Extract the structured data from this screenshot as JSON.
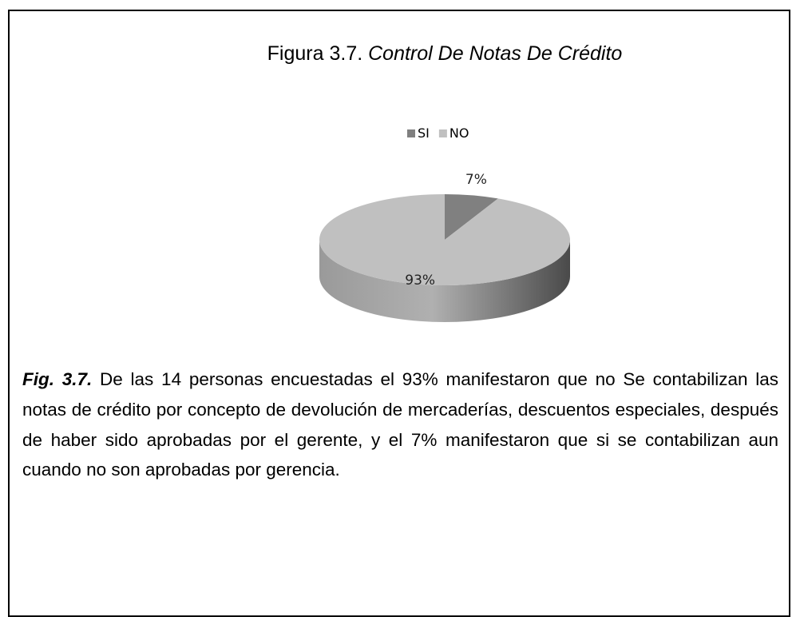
{
  "chart_data": {
    "type": "pie",
    "figure_label": "Figura 3.7.",
    "title": "Control De Notas De Crédito",
    "categories": [
      "SI",
      "NO"
    ],
    "values": [
      7,
      93
    ],
    "value_labels": [
      "7%",
      "93%"
    ],
    "colors": [
      "#808080",
      "#c0c0c0"
    ],
    "legend": "top"
  },
  "caption": {
    "label": "Fig. 3.7.",
    "text": "De las 14 personas encuestadas el 93% manifestaron que no Se contabilizan las notas de crédito por concepto de devolución de mercaderías, descuentos especiales, después de haber sido aprobadas por el gerente, y el 7% manifestaron que si se contabilizan aun cuando no son aprobadas por gerencia."
  }
}
